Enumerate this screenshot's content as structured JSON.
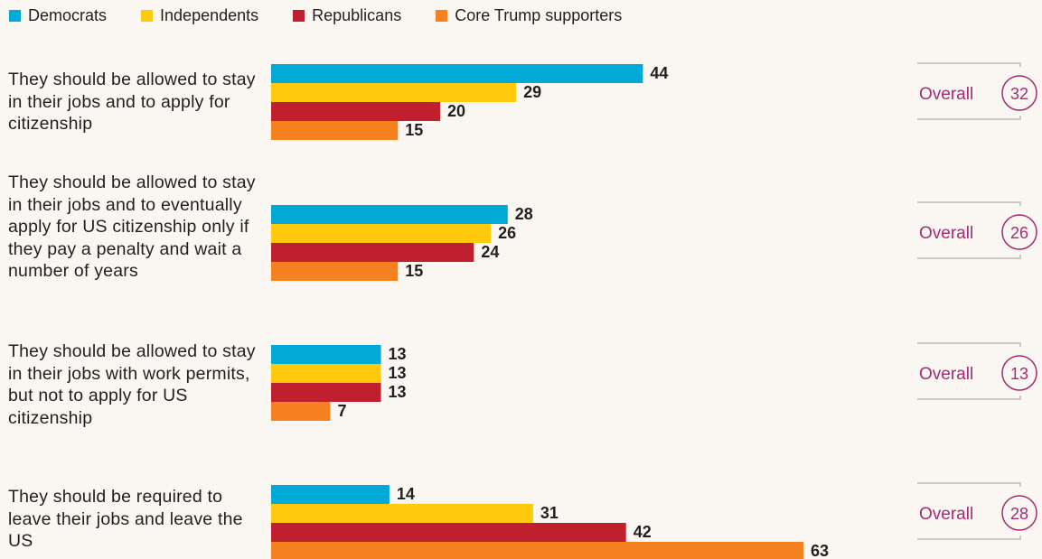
{
  "legend": [
    {
      "label": "Democrats",
      "color": "#00a9d6"
    },
    {
      "label": "Independents",
      "color": "#ffc90d"
    },
    {
      "label": "Republicans",
      "color": "#c0202d"
    },
    {
      "label": "Core Trump supporters",
      "color": "#f68121"
    }
  ],
  "overall_label": "Overall",
  "chart_data": {
    "type": "bar",
    "orientation": "horizontal",
    "categories": [
      "They should be allowed to stay in their jobs and to apply for citizenship",
      "They should be allowed to stay in their jobs and to eventually apply for US citizenship only if they pay a penalty and wait a number of years",
      "They should be allowed to stay in their jobs with work permits, but not to apply for US citizenship",
      "They should be required to leave their jobs and leave the US"
    ],
    "series": [
      {
        "name": "Democrats",
        "values": [
          44,
          28,
          13,
          14
        ]
      },
      {
        "name": "Independents",
        "values": [
          29,
          26,
          13,
          31
        ]
      },
      {
        "name": "Republicans",
        "values": [
          20,
          24,
          13,
          42
        ]
      },
      {
        "name": "Core Trump supporters",
        "values": [
          15,
          15,
          7,
          63
        ]
      }
    ],
    "overall": [
      32,
      26,
      13,
      28
    ],
    "legend_position": "top-left",
    "grid": false
  }
}
